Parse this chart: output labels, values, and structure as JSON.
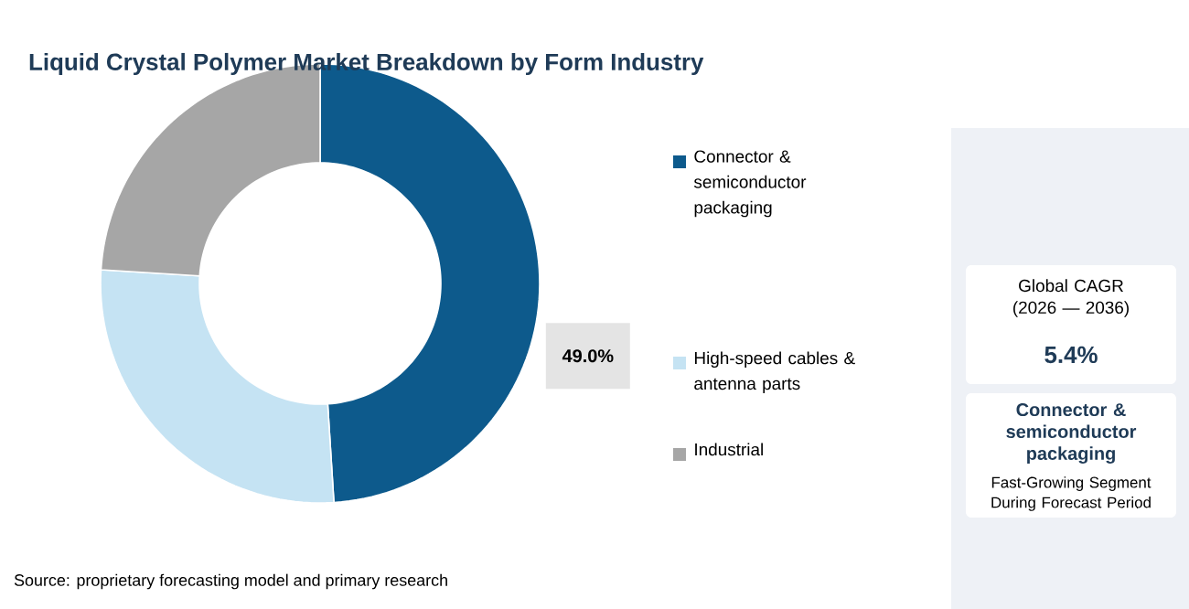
{
  "chart_data": {
    "type": "donut",
    "title": "Liquid Crystal Polymer Market Breakdown by Form Industry",
    "categories": [
      "Connector & semiconductor packaging",
      "High-speed cables & antenna parts",
      "Industrial"
    ],
    "values": [
      49.0,
      27,
      24
    ],
    "colors": [
      "#0d5a8c",
      "#c5e3f3",
      "#a6a6a6"
    ],
    "value_labels": [
      "49.0%",
      null,
      null
    ],
    "legend": "right",
    "annotations": [
      "Global CAGR (2026 — 2036)",
      "5.4%",
      "Connector & semiconductor packaging",
      "Fast-Growing Segment During Forecast Period",
      "Source: proprietary forecasting model and primary research"
    ]
  }
}
